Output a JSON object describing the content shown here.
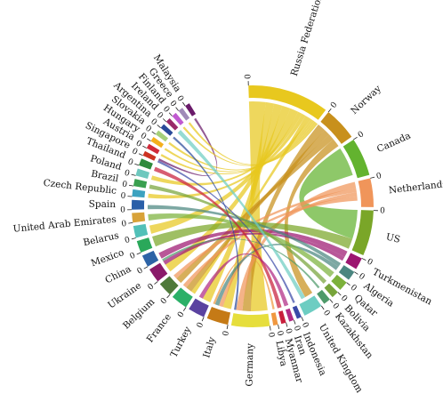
{
  "chart_data": {
    "type": "chord",
    "tick_label": "0",
    "groups": [
      {
        "name": "Russia Federation",
        "color": "#e8c81e",
        "value": 34
      },
      {
        "name": "Norway",
        "color": "#c8901c",
        "value": 14
      },
      {
        "name": "Canada",
        "color": "#63b32f",
        "value": 16
      },
      {
        "name": "Netherlands",
        "color": "#f0955a",
        "value": 12
      },
      {
        "name": "US",
        "color": "#7aa628",
        "value": 19
      },
      {
        "name": "Turkmenistan",
        "color": "#9c1670",
        "value": 5
      },
      {
        "name": "Algeria",
        "color": "#4b8680",
        "value": 4
      },
      {
        "name": "Qatar",
        "color": "#7cb13b",
        "value": 4
      },
      {
        "name": "Bolivia",
        "color": "#77a43a",
        "value": 3
      },
      {
        "name": "Kazakhstan",
        "color": "#4e9a6a",
        "value": 3
      },
      {
        "name": "United Kingdom",
        "color": "#6dcdc2",
        "value": 8
      },
      {
        "name": "Indonesia",
        "color": "#3a49a8",
        "value": 2
      },
      {
        "name": "Iran",
        "color": "#b02a84",
        "value": 2
      },
      {
        "name": "Myanmar",
        "color": "#c81e3c",
        "value": 2
      },
      {
        "name": "Libya",
        "color": "#f09840",
        "value": 2
      },
      {
        "name": "Germany",
        "color": "#e6de3c",
        "value": 16
      },
      {
        "name": "Italy",
        "color": "#c57a16",
        "value": 9
      },
      {
        "name": "Turkey",
        "color": "#5a42a0",
        "value": 7
      },
      {
        "name": "France",
        "color": "#2bb068",
        "value": 7
      },
      {
        "name": "Belgium",
        "color": "#4f7a3a",
        "value": 6
      },
      {
        "name": "Ukraine",
        "color": "#8a1a6a",
        "value": 6
      },
      {
        "name": "China",
        "color": "#2d63a6",
        "value": 5
      },
      {
        "name": "Mexico",
        "color": "#2aa85a",
        "value": 5
      },
      {
        "name": "Belarus",
        "color": "#52c0b8",
        "value": 5
      },
      {
        "name": "United Arab Emirates",
        "color": "#d8a238",
        "value": 4
      },
      {
        "name": "Spain",
        "color": "#2a5fa8",
        "value": 4
      },
      {
        "name": "Czech Republic",
        "color": "#3ca2c0",
        "value": 3
      },
      {
        "name": "Brazil",
        "color": "#3aa050",
        "value": 3
      },
      {
        "name": "Poland",
        "color": "#6ec8be",
        "value": 3
      },
      {
        "name": "Thailand",
        "color": "#2f8a3c",
        "value": 3
      },
      {
        "name": "Singapore",
        "color": "#cc3322",
        "value": 2
      },
      {
        "name": "Austria",
        "color": "#d02a3a",
        "value": 2
      },
      {
        "name": "Hungary",
        "color": "#f4b01c",
        "value": 2
      },
      {
        "name": "Slovakia",
        "color": "#a6d07a",
        "value": 2
      },
      {
        "name": "Argentina",
        "color": "#2a4a9a",
        "value": 2
      },
      {
        "name": "Ireland",
        "color": "#9a2a6a",
        "value": 2
      },
      {
        "name": "Finland",
        "color": "#c05ad0",
        "value": 2
      },
      {
        "name": "Greece",
        "color": "#a08ab8",
        "value": 2
      },
      {
        "name": "Malaysia",
        "color": "#6a1a6a",
        "value": 2
      }
    ],
    "flows": [
      [
        "Russia Federation",
        "Germany",
        8
      ],
      [
        "Russia Federation",
        "Italy",
        4
      ],
      [
        "Russia Federation",
        "Turkey",
        4
      ],
      [
        "Russia Federation",
        "Ukraine",
        4
      ],
      [
        "Russia Federation",
        "Belarus",
        4
      ],
      [
        "Russia Federation",
        "Poland",
        2
      ],
      [
        "Russia Federation",
        "Czech Republic",
        2
      ],
      [
        "Russia Federation",
        "France",
        2
      ],
      [
        "Russia Federation",
        "Austria",
        1
      ],
      [
        "Russia Federation",
        "Hungary",
        1
      ],
      [
        "Russia Federation",
        "Slovakia",
        1
      ],
      [
        "Norway",
        "Germany",
        4
      ],
      [
        "Norway",
        "France",
        3
      ],
      [
        "Norway",
        "Belgium",
        3
      ],
      [
        "Norway",
        "United Kingdom",
        4
      ],
      [
        "Canada",
        "US",
        14
      ],
      [
        "Netherlands",
        "Germany",
        3
      ],
      [
        "Netherlands",
        "Belgium",
        2
      ],
      [
        "Netherlands",
        "Italy",
        2
      ],
      [
        "Netherlands",
        "France",
        2
      ],
      [
        "US",
        "Mexico",
        5
      ],
      [
        "Turkmenistan",
        "China",
        3
      ],
      [
        "Turkmenistan",
        "Ukraine",
        2
      ],
      [
        "Algeria",
        "Spain",
        2
      ],
      [
        "Algeria",
        "Italy",
        2
      ],
      [
        "Qatar",
        "United Arab Emirates",
        3
      ],
      [
        "Bolivia",
        "Brazil",
        2
      ],
      [
        "Kazakhstan",
        "Ukraine",
        1
      ],
      [
        "Indonesia",
        "Singapore",
        1
      ],
      [
        "Myanmar",
        "Thailand",
        2
      ],
      [
        "Libya",
        "Italy",
        1
      ],
      [
        "Iran",
        "Turkey",
        2
      ],
      [
        "Malaysia",
        "Singapore",
        1
      ],
      [
        "Russia Federation",
        "Finland",
        1
      ],
      [
        "Russia Federation",
        "Greece",
        1
      ],
      [
        "United Kingdom",
        "Ireland",
        2
      ],
      [
        "Argentina",
        "Germany",
        1
      ]
    ]
  }
}
